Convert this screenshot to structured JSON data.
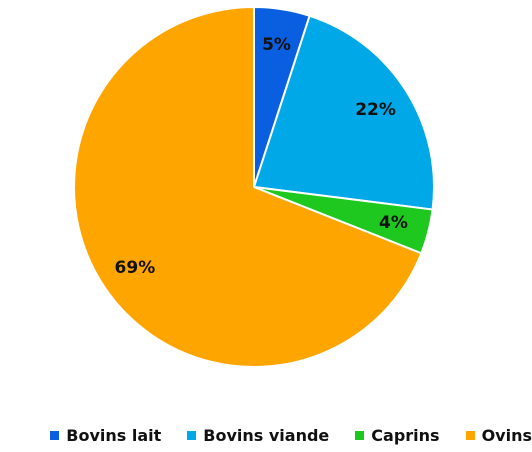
{
  "chart_data": {
    "type": "pie",
    "categories": [
      "Bovins lait",
      "Bovins viande",
      "Caprins",
      "Ovins"
    ],
    "values": [
      5,
      22,
      4,
      69
    ],
    "value_labels": [
      "5%",
      "22%",
      "4%",
      "69%"
    ],
    "colors": [
      "#0a5fe0",
      "#00a8e8",
      "#1ec81e",
      "#ffa500"
    ],
    "legend": "bottom"
  }
}
